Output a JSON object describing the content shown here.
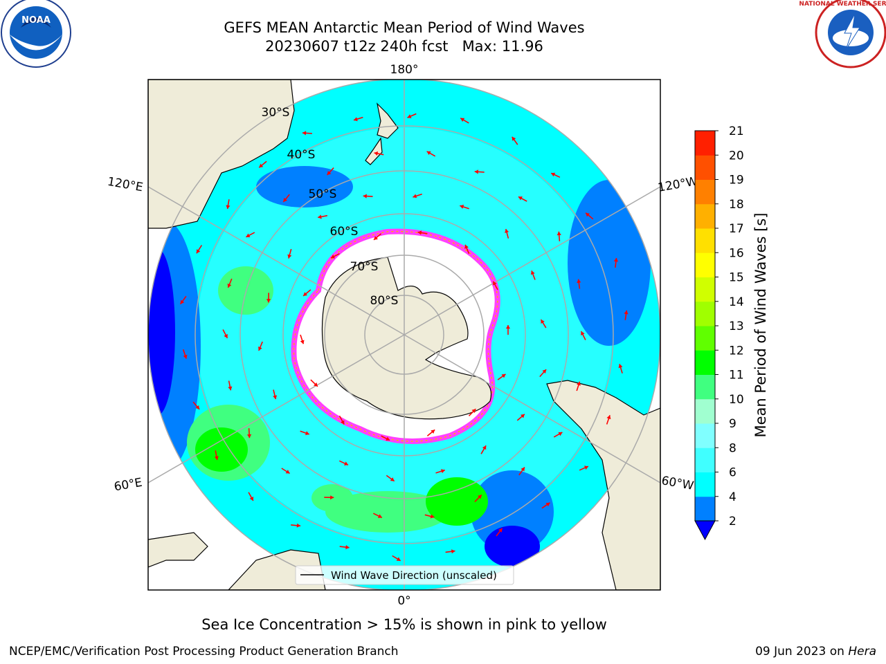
{
  "header": {
    "title_line1": "GEFS MEAN Antarctic Mean Period of Wind Waves",
    "title_line2": "20230607 t12z 240h fcst   Max: 11.96"
  },
  "logos": {
    "left": {
      "name": "noaa-logo",
      "text": "NOAA"
    },
    "right": {
      "name": "national-weather-service-logo",
      "text": "NATIONAL WEATHER SERVICE"
    }
  },
  "map": {
    "projection": "south-polar-stereographic",
    "longitude_labels": [
      "180°",
      "120°E",
      "120°W",
      "60°E",
      "60°W",
      "0°"
    ],
    "latitude_labels": [
      "30°S",
      "40°S",
      "50°S",
      "60°S",
      "70°S",
      "80°S"
    ],
    "legend_label": "Wind Wave Direction (unscaled)",
    "colors": {
      "land": "#efecd9",
      "ocean_base": "#00ffff",
      "ice_edge": "#ff40ff",
      "arrow": "#ff0000"
    }
  },
  "colorbar": {
    "label": "Mean Period of Wind Waves [s]",
    "ticks": [
      "2",
      "4",
      "6",
      "8",
      "9",
      "10",
      "11",
      "12",
      "13",
      "14",
      "15",
      "16",
      "17",
      "18",
      "19",
      "20",
      "21"
    ],
    "colors": [
      "#0080ff",
      "#00ffff",
      "#40ffff",
      "#80ffff",
      "#a0ffd0",
      "#40ff80",
      "#00ff00",
      "#60ff00",
      "#a0ff00",
      "#d0ff00",
      "#ffff00",
      "#ffe000",
      "#ffb000",
      "#ff8000",
      "#ff5000",
      "#ff2000",
      "#ff0000"
    ],
    "under_color": "#0000ff"
  },
  "notes": {
    "ice": "Sea Ice Concentration > 15% is shown in pink to yellow"
  },
  "footer": {
    "left": "NCEP/EMC/Verification Post Processing Product Generation Branch",
    "right_date": "09 Jun 2023 on ",
    "right_host": "Hera"
  }
}
